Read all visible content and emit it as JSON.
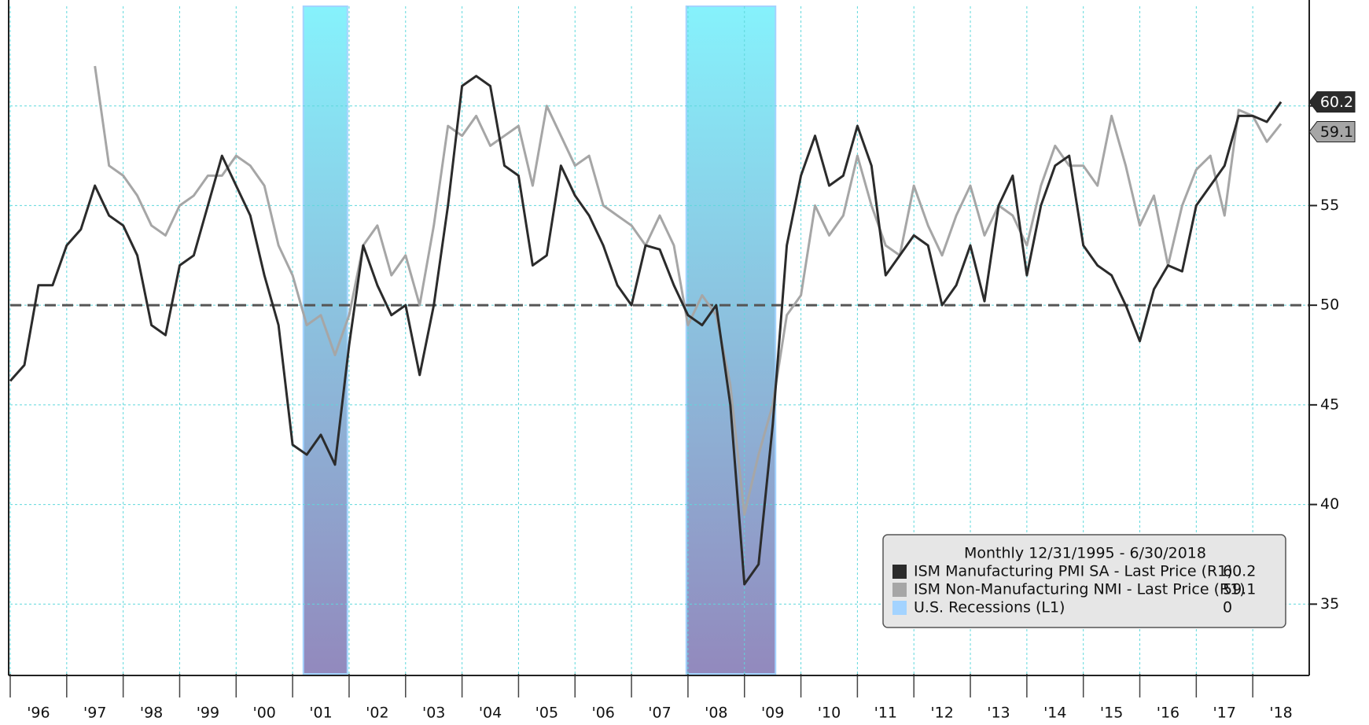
{
  "chart_data": {
    "type": "line",
    "legend_title": "Monthly 12/31/1995 - 6/30/2018",
    "x": [
      1996,
      1996.25,
      1996.5,
      1996.75,
      1997,
      1997.25,
      1997.5,
      1997.75,
      1998,
      1998.25,
      1998.5,
      1998.75,
      1999,
      1999.25,
      1999.5,
      1999.75,
      2000,
      2000.25,
      2000.5,
      2000.75,
      2001,
      2001.25,
      2001.5,
      2001.75,
      2002,
      2002.25,
      2002.5,
      2002.75,
      2003,
      2003.25,
      2003.5,
      2003.75,
      2004,
      2004.25,
      2004.5,
      2004.75,
      2005,
      2005.25,
      2005.5,
      2005.75,
      2006,
      2006.25,
      2006.5,
      2006.75,
      2007,
      2007.25,
      2007.5,
      2007.75,
      2008,
      2008.25,
      2008.5,
      2008.75,
      2009,
      2009.25,
      2009.5,
      2009.75,
      2010,
      2010.25,
      2010.5,
      2010.75,
      2011,
      2011.25,
      2011.5,
      2011.75,
      2012,
      2012.25,
      2012.5,
      2012.75,
      2013,
      2013.25,
      2013.5,
      2013.75,
      2014,
      2014.25,
      2014.5,
      2014.75,
      2015,
      2015.25,
      2015.5,
      2015.75,
      2016,
      2016.25,
      2016.5,
      2016.75,
      2017,
      2017.25,
      2017.5,
      2017.75,
      2018,
      2018.25,
      2018.5
    ],
    "series": [
      {
        "name": "ISM Manufacturing PMI SA - Last Price (R1)",
        "color": "#2b2b2b",
        "last": 60.2,
        "values": [
          46.2,
          47,
          51,
          51,
          53,
          53.8,
          56,
          54.5,
          54,
          52.5,
          49,
          48.5,
          52,
          52.5,
          55,
          57.5,
          56,
          54.5,
          51.5,
          49,
          43,
          42.5,
          43.5,
          42,
          48,
          53,
          51,
          49.5,
          50,
          46.5,
          50,
          55,
          61,
          61.5,
          61,
          57,
          56.5,
          52,
          52.5,
          57,
          55.5,
          54.5,
          53,
          51,
          50,
          53,
          52.8,
          51,
          49.5,
          49,
          50,
          45,
          36,
          37,
          44,
          53,
          56.5,
          58.5,
          56,
          56.5,
          59,
          57,
          51.5,
          52.5,
          53.5,
          53,
          50,
          51,
          53,
          50.2,
          55,
          56.5,
          51.5,
          55,
          57,
          57.5,
          53,
          52,
          51.5,
          50,
          48.2,
          50.8,
          52,
          51.7,
          55,
          56,
          57,
          59.5,
          59.5,
          59.2,
          60.2
        ]
      },
      {
        "name": "ISM Non-Manufacturing NMI - Last Price (R1)",
        "color": "#a6a6a6",
        "last": 59.1,
        "values": [
          null,
          null,
          null,
          null,
          null,
          null,
          62,
          57,
          56.5,
          55.5,
          54,
          53.5,
          55,
          55.5,
          56.5,
          56.5,
          57.5,
          57,
          56,
          53,
          51.5,
          49,
          49.5,
          47.5,
          49.5,
          53,
          54,
          51.5,
          52.5,
          50,
          54,
          59,
          58.5,
          59.5,
          58,
          58.5,
          59,
          56,
          60,
          58.5,
          57,
          57.5,
          55,
          54.5,
          54,
          53,
          54.5,
          53,
          49,
          50.5,
          49.5,
          46,
          39.5,
          42.5,
          45,
          49.5,
          50.5,
          55,
          53.5,
          54.5,
          57.5,
          55,
          53,
          52.5,
          56,
          54,
          52.5,
          54.5,
          56,
          53.5,
          55,
          54.5,
          53,
          56,
          58,
          57,
          57,
          56,
          59.5,
          57,
          54,
          55.5,
          52,
          55,
          56.8,
          57.5,
          54.5,
          59.8,
          59.5,
          58.2,
          59.1
        ]
      }
    ],
    "recessions": {
      "name": "U.S. Recessions (L1)",
      "color": "#a3d3ff",
      "last_value": 0,
      "periods": [
        [
          2001.19,
          2001.97
        ],
        [
          2007.97,
          2009.55
        ]
      ]
    },
    "reference_line": 50,
    "xlim": [
      1996,
      2019
    ],
    "xticks": [
      {
        "value": 1996,
        "label": "'96"
      },
      {
        "value": 1997,
        "label": "'97"
      },
      {
        "value": 1998,
        "label": "'98"
      },
      {
        "value": 1999,
        "label": "'99"
      },
      {
        "value": 2000,
        "label": "'00"
      },
      {
        "value": 2001,
        "label": "'01"
      },
      {
        "value": 2002,
        "label": "'02"
      },
      {
        "value": 2003,
        "label": "'03"
      },
      {
        "value": 2004,
        "label": "'04"
      },
      {
        "value": 2005,
        "label": "'05"
      },
      {
        "value": 2006,
        "label": "'06"
      },
      {
        "value": 2007,
        "label": "'07"
      },
      {
        "value": 2008,
        "label": "'08"
      },
      {
        "value": 2009,
        "label": "'09"
      },
      {
        "value": 2010,
        "label": "'10"
      },
      {
        "value": 2011,
        "label": "'11"
      },
      {
        "value": 2012,
        "label": "'12"
      },
      {
        "value": 2013,
        "label": "'13"
      },
      {
        "value": 2014,
        "label": "'14"
      },
      {
        "value": 2015,
        "label": "'15"
      },
      {
        "value": 2016,
        "label": "'16"
      },
      {
        "value": 2017,
        "label": "'17"
      },
      {
        "value": 2018,
        "label": "'18"
      }
    ],
    "ylim": [
      31.5,
      65
    ],
    "yticks": [
      35,
      40,
      45,
      50,
      55,
      60
    ],
    "grid": true
  }
}
